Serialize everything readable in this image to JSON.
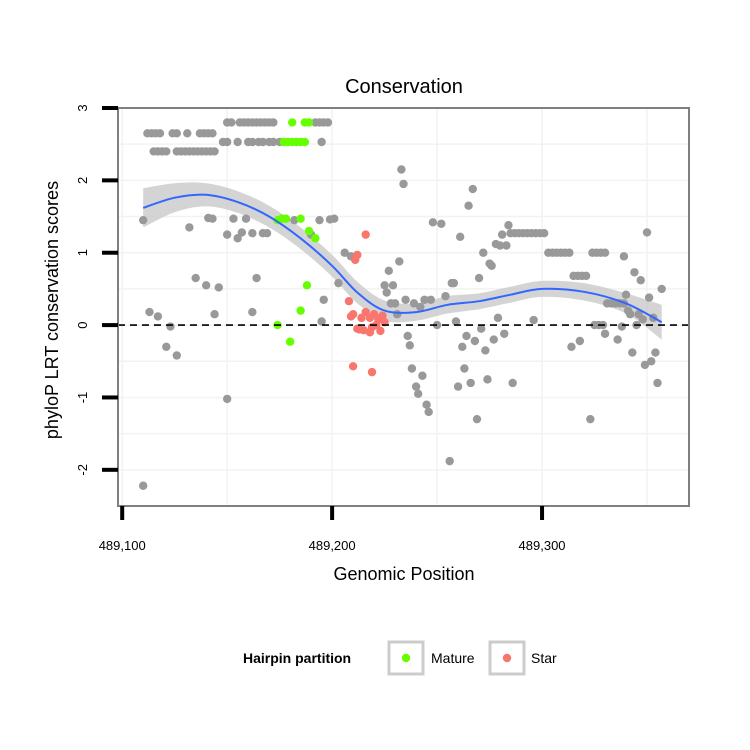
{
  "chart_data": {
    "type": "scatter",
    "title": "Conservation",
    "xlabel": "Genomic Position",
    "ylabel": "phyloP LRT conservation scores",
    "xlim": [
      489098,
      489370
    ],
    "ylim": [
      -2.5,
      3.0
    ],
    "x_ticks": [
      489100,
      489200,
      489300
    ],
    "x_tick_labels": [
      "489,100",
      "489,200",
      "489,300"
    ],
    "y_ticks": [
      -2,
      -1,
      0,
      1,
      2,
      3
    ],
    "y_tick_labels": [
      "-2",
      "-1",
      "0",
      "1",
      "2",
      "3"
    ],
    "grid": true,
    "reference_line": {
      "y": 0,
      "style": "dashed"
    },
    "legend": {
      "title": "Hairpin partition",
      "placement": "bottom",
      "entries": [
        {
          "label": "Mature",
          "color": "#66ff00"
        },
        {
          "label": "Star",
          "color": "#f8766d"
        }
      ]
    },
    "colors": {
      "other": "#999999",
      "mature": "#66ff00",
      "star": "#f8766d",
      "smooth": "#3366ff",
      "band": "#cccccc"
    },
    "smooth_curve": {
      "x": [
        489110,
        489125,
        489140,
        489155,
        489170,
        489185,
        489200,
        489212,
        489225,
        489240,
        489255,
        489270,
        489285,
        489300,
        489320,
        489340,
        489357
      ],
      "y": [
        1.62,
        1.76,
        1.8,
        1.7,
        1.5,
        1.2,
        0.82,
        0.45,
        0.2,
        0.18,
        0.28,
        0.33,
        0.42,
        0.5,
        0.46,
        0.3,
        0.04
      ],
      "band_half_width": [
        0.27,
        0.2,
        0.16,
        0.15,
        0.15,
        0.15,
        0.15,
        0.15,
        0.14,
        0.12,
        0.12,
        0.11,
        0.11,
        0.11,
        0.12,
        0.14,
        0.24
      ]
    },
    "series": [
      {
        "name": "Mature",
        "points": [
          [
            489177,
            2.53
          ],
          [
            489179,
            2.53
          ],
          [
            489181,
            2.53
          ],
          [
            489183,
            2.53
          ],
          [
            489185,
            2.53
          ],
          [
            489187,
            2.53
          ],
          [
            489181,
            2.8
          ],
          [
            489187,
            2.8
          ],
          [
            489189,
            2.8
          ],
          [
            489174,
            1.45
          ],
          [
            489176,
            1.47
          ],
          [
            489178,
            1.47
          ],
          [
            489185,
            1.47
          ],
          [
            489189,
            1.3
          ],
          [
            489192,
            1.2
          ],
          [
            489188,
            0.55
          ],
          [
            489185,
            0.2
          ],
          [
            489174,
            0.0
          ],
          [
            489180,
            -0.23
          ]
        ]
      },
      {
        "name": "Star",
        "points": [
          [
            489216,
            1.25
          ],
          [
            489212,
            0.97
          ],
          [
            489211,
            0.9
          ],
          [
            489208,
            0.33
          ],
          [
            489209,
            0.12
          ],
          [
            489210,
            0.15
          ],
          [
            489212,
            -0.05
          ],
          [
            489214,
            0.1
          ],
          [
            489216,
            0.18
          ],
          [
            489218,
            0.1
          ],
          [
            489219,
            -0.03
          ],
          [
            489220,
            0.15
          ],
          [
            489221,
            0.0
          ],
          [
            489222,
            0.08
          ],
          [
            489223,
            -0.08
          ],
          [
            489224,
            0.13
          ],
          [
            489225,
            0.04
          ],
          [
            489215,
            -0.07
          ],
          [
            489218,
            -0.1
          ],
          [
            489210,
            -0.57
          ],
          [
            489219,
            -0.65
          ],
          [
            489213,
            -0.06
          ]
        ]
      },
      {
        "name": "",
        "points": [
          [
            489112,
            2.65
          ],
          [
            489114,
            2.65
          ],
          [
            489116,
            2.65
          ],
          [
            489118,
            2.65
          ],
          [
            489124,
            2.65
          ],
          [
            489126,
            2.65
          ],
          [
            489131,
            2.65
          ],
          [
            489137,
            2.65
          ],
          [
            489139,
            2.65
          ],
          [
            489141,
            2.65
          ],
          [
            489143,
            2.65
          ],
          [
            489115,
            2.4
          ],
          [
            489117,
            2.4
          ],
          [
            489119,
            2.4
          ],
          [
            489121,
            2.4
          ],
          [
            489126,
            2.4
          ],
          [
            489128,
            2.4
          ],
          [
            489130,
            2.4
          ],
          [
            489132,
            2.4
          ],
          [
            489134,
            2.4
          ],
          [
            489136,
            2.4
          ],
          [
            489138,
            2.4
          ],
          [
            489140,
            2.4
          ],
          [
            489142,
            2.4
          ],
          [
            489144,
            2.4
          ],
          [
            489150,
            2.8
          ],
          [
            489152,
            2.8
          ],
          [
            489156,
            2.8
          ],
          [
            489158,
            2.8
          ],
          [
            489160,
            2.8
          ],
          [
            489162,
            2.8
          ],
          [
            489164,
            2.8
          ],
          [
            489166,
            2.8
          ],
          [
            489168,
            2.8
          ],
          [
            489170,
            2.8
          ],
          [
            489172,
            2.8
          ],
          [
            489192,
            2.8
          ],
          [
            489194,
            2.8
          ],
          [
            489196,
            2.8
          ],
          [
            489198,
            2.8
          ],
          [
            489148,
            2.53
          ],
          [
            489150,
            2.53
          ],
          [
            489155,
            2.53
          ],
          [
            489160,
            2.53
          ],
          [
            489162,
            2.53
          ],
          [
            489165,
            2.53
          ],
          [
            489167,
            2.53
          ],
          [
            489170,
            2.53
          ],
          [
            489172,
            2.53
          ],
          [
            489175,
            2.53
          ],
          [
            489195,
            2.53
          ],
          [
            489110,
            1.45
          ],
          [
            489132,
            1.35
          ],
          [
            489141,
            1.48
          ],
          [
            489143,
            1.47
          ],
          [
            489150,
            1.25
          ],
          [
            489153,
            1.47
          ],
          [
            489155,
            1.2
          ],
          [
            489157,
            1.28
          ],
          [
            489159,
            1.47
          ],
          [
            489162,
            1.27
          ],
          [
            489167,
            1.27
          ],
          [
            489169,
            1.27
          ],
          [
            489182,
            1.45
          ],
          [
            489190,
            1.25
          ],
          [
            489194,
            1.45
          ],
          [
            489199,
            1.46
          ],
          [
            489201,
            1.47
          ],
          [
            489206,
            1.0
          ],
          [
            489203,
            0.58
          ],
          [
            489209,
            0.95
          ],
          [
            489113,
            0.18
          ],
          [
            489117,
            0.12
          ],
          [
            489121,
            -0.3
          ],
          [
            489123,
            -0.02
          ],
          [
            489126,
            -0.42
          ],
          [
            489135,
            0.65
          ],
          [
            489140,
            0.55
          ],
          [
            489144,
            0.15
          ],
          [
            489146,
            0.52
          ],
          [
            489150,
            -1.02
          ],
          [
            489162,
            0.18
          ],
          [
            489164,
            0.65
          ],
          [
            489196,
            0.35
          ],
          [
            489110,
            -2.22
          ],
          [
            489195,
            0.05
          ],
          [
            489225,
            0.55
          ],
          [
            489226,
            0.45
          ],
          [
            489227,
            0.75
          ],
          [
            489228,
            0.3
          ],
          [
            489229,
            0.55
          ],
          [
            489230,
            0.3
          ],
          [
            489231,
            0.15
          ],
          [
            489232,
            0.88
          ],
          [
            489233,
            2.15
          ],
          [
            489234,
            1.95
          ],
          [
            489235,
            0.35
          ],
          [
            489236,
            -0.15
          ],
          [
            489237,
            -0.28
          ],
          [
            489238,
            -0.6
          ],
          [
            489239,
            0.3
          ],
          [
            489240,
            -0.85
          ],
          [
            489241,
            -0.95
          ],
          [
            489242,
            0.25
          ],
          [
            489243,
            -0.7
          ],
          [
            489244,
            0.35
          ],
          [
            489245,
            -1.1
          ],
          [
            489246,
            -1.2
          ],
          [
            489247,
            0.35
          ],
          [
            489248,
            1.42
          ],
          [
            489250,
            0.0
          ],
          [
            489252,
            1.4
          ],
          [
            489254,
            0.4
          ],
          [
            489256,
            -1.88
          ],
          [
            489257,
            0.58
          ],
          [
            489258,
            0.58
          ],
          [
            489259,
            0.05
          ],
          [
            489260,
            -0.85
          ],
          [
            489261,
            1.22
          ],
          [
            489262,
            -0.3
          ],
          [
            489263,
            -0.6
          ],
          [
            489264,
            -0.15
          ],
          [
            489265,
            1.65
          ],
          [
            489266,
            -0.8
          ],
          [
            489267,
            1.88
          ],
          [
            489268,
            -0.22
          ],
          [
            489269,
            -1.3
          ],
          [
            489270,
            0.65
          ],
          [
            489271,
            -0.05
          ],
          [
            489272,
            1.0
          ],
          [
            489273,
            -0.35
          ],
          [
            489274,
            -0.75
          ],
          [
            489275,
            0.85
          ],
          [
            489276,
            0.82
          ],
          [
            489277,
            -0.2
          ],
          [
            489278,
            1.12
          ],
          [
            489279,
            0.1
          ],
          [
            489280,
            1.1
          ],
          [
            489281,
            1.25
          ],
          [
            489282,
            -0.12
          ],
          [
            489283,
            1.1
          ],
          [
            489284,
            1.38
          ],
          [
            489285,
            1.27
          ],
          [
            489286,
            -0.8
          ],
          [
            489287,
            1.27
          ],
          [
            489289,
            1.27
          ],
          [
            489291,
            1.27
          ],
          [
            489293,
            1.27
          ],
          [
            489295,
            1.27
          ],
          [
            489297,
            1.27
          ],
          [
            489299,
            1.27
          ],
          [
            489301,
            1.27
          ],
          [
            489296,
            0.07
          ],
          [
            489303,
            1.0
          ],
          [
            489305,
            1.0
          ],
          [
            489307,
            1.0
          ],
          [
            489309,
            1.0
          ],
          [
            489311,
            1.0
          ],
          [
            489313,
            1.0
          ],
          [
            489315,
            0.68
          ],
          [
            489317,
            0.68
          ],
          [
            489319,
            0.68
          ],
          [
            489321,
            0.68
          ],
          [
            489314,
            -0.3
          ],
          [
            489318,
            -0.22
          ],
          [
            489323,
            -1.3
          ],
          [
            489324,
            1.0
          ],
          [
            489326,
            1.0
          ],
          [
            489328,
            1.0
          ],
          [
            489330,
            1.0
          ],
          [
            489325,
            0.0
          ],
          [
            489327,
            0.0
          ],
          [
            489329,
            0.0
          ],
          [
            489331,
            0.3
          ],
          [
            489333,
            0.3
          ],
          [
            489335,
            0.3
          ],
          [
            489337,
            0.3
          ],
          [
            489339,
            0.3
          ],
          [
            489330,
            -0.12
          ],
          [
            489336,
            -0.2
          ],
          [
            489340,
            0.42
          ],
          [
            489341,
            0.2
          ],
          [
            489342,
            0.15
          ],
          [
            489343,
            -0.38
          ],
          [
            489344,
            0.73
          ],
          [
            489345,
            0.0
          ],
          [
            489346,
            0.15
          ],
          [
            489347,
            0.62
          ],
          [
            489348,
            0.08
          ],
          [
            489349,
            -0.55
          ],
          [
            489350,
            1.28
          ],
          [
            489351,
            0.38
          ],
          [
            489352,
            -0.5
          ],
          [
            489353,
            0.1
          ],
          [
            489354,
            -0.38
          ],
          [
            489355,
            -0.8
          ],
          [
            489357,
            0.5
          ],
          [
            489339,
            0.95
          ],
          [
            489338,
            -0.02
          ]
        ]
      }
    ]
  }
}
